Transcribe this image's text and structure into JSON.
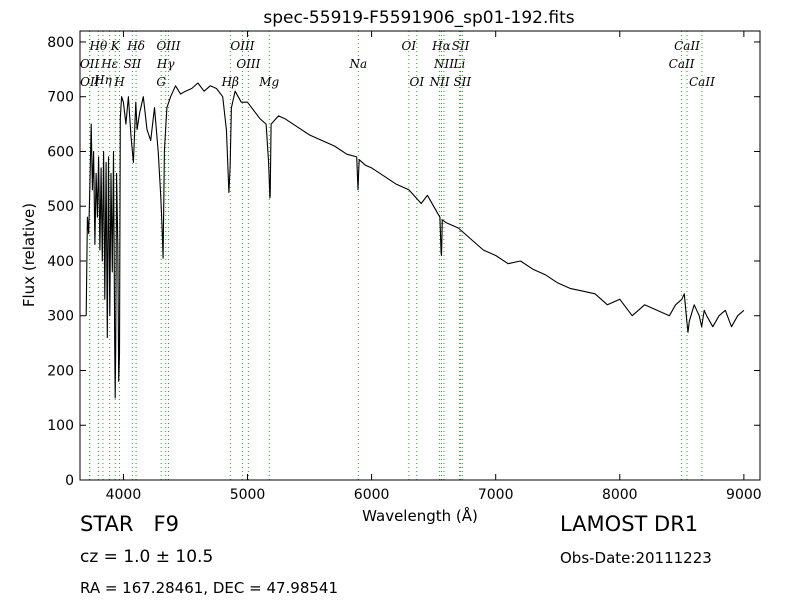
{
  "info": {
    "object_class": "STAR",
    "subclass": "F9",
    "cz_text": "cz = 1.0 ± 10.5",
    "radec_text": "RA = 167.28461, DEC = 47.98541",
    "survey": "LAMOST DR1",
    "obs_date": "Obs-Date:20111223"
  },
  "colors": {
    "line": "#000000",
    "marker": "#2ca02c",
    "background": "#ffffff"
  },
  "chart_data": {
    "type": "line",
    "title": "spec-55919-F5591906_sp01-192.fits",
    "xlabel": "Wavelength (Å)",
    "ylabel": "Flux (relative)",
    "xlim": [
      3650,
      9130
    ],
    "ylim": [
      0,
      820
    ],
    "xticks": [
      4000,
      5000,
      6000,
      7000,
      8000,
      9000
    ],
    "yticks": [
      0,
      100,
      200,
      300,
      400,
      500,
      600,
      700,
      800
    ],
    "grid": false,
    "series": [
      {
        "x": [
          3700,
          3710,
          3720,
          3730,
          3740,
          3750,
          3760,
          3770,
          3780,
          3790,
          3800,
          3810,
          3820,
          3830,
          3840,
          3850,
          3860,
          3870,
          3880,
          3890,
          3900,
          3910,
          3920,
          3930,
          3934,
          3938,
          3945,
          3955,
          3962,
          3968,
          3975,
          3985,
          4000,
          4020,
          4040,
          4060,
          4080,
          4100,
          4110,
          4130,
          4160,
          4190,
          4220,
          4250,
          4280,
          4300,
          4310,
          4320,
          4330,
          4340,
          4350,
          4380,
          4420,
          4460,
          4500,
          4550,
          4600,
          4650,
          4700,
          4750,
          4800,
          4830,
          4850,
          4860,
          4870,
          4900,
          4950,
          5000,
          5050,
          5100,
          5150,
          5170,
          5180,
          5183,
          5190,
          5250,
          5300,
          5400,
          5500,
          5600,
          5700,
          5800,
          5880,
          5890,
          5895,
          5900,
          5950,
          6000,
          6100,
          6200,
          6300,
          6400,
          6450,
          6500,
          6550,
          6560,
          6563,
          6570,
          6600,
          6700,
          6800,
          6900,
          7000,
          7100,
          7200,
          7300,
          7400,
          7500,
          7600,
          7700,
          7800,
          7900,
          8000,
          8100,
          8200,
          8300,
          8400,
          8450,
          8500,
          8520,
          8540,
          8550,
          8560,
          8600,
          8640,
          8660,
          8680,
          8700,
          8750,
          8800,
          8850,
          8900,
          8950,
          9000
        ],
        "values": [
          300,
          480,
          450,
          540,
          650,
          530,
          600,
          430,
          560,
          480,
          590,
          420,
          570,
          400,
          600,
          330,
          580,
          260,
          590,
          300,
          560,
          380,
          600,
          250,
          150,
          240,
          560,
          430,
          180,
          230,
          660,
          700,
          690,
          650,
          700,
          630,
          580,
          690,
          640,
          670,
          700,
          640,
          620,
          680,
          600,
          520,
          470,
          405,
          600,
          640,
          680,
          700,
          720,
          705,
          710,
          715,
          725,
          710,
          720,
          715,
          700,
          640,
          525,
          570,
          680,
          710,
          690,
          690,
          675,
          660,
          650,
          580,
          515,
          520,
          650,
          665,
          660,
          645,
          630,
          620,
          610,
          595,
          590,
          530,
          560,
          585,
          575,
          570,
          555,
          540,
          530,
          505,
          520,
          500,
          480,
          415,
          410,
          475,
          470,
          460,
          440,
          420,
          410,
          395,
          400,
          385,
          375,
          360,
          350,
          345,
          340,
          320,
          330,
          300,
          320,
          310,
          300,
          320,
          330,
          340,
          290,
          270,
          290,
          320,
          300,
          280,
          310,
          300,
          280,
          300,
          310,
          280,
          300,
          310
        ]
      }
    ],
    "line_markers": [
      {
        "label": "Hθ",
        "x": 3798,
        "row": 1
      },
      {
        "label": "K",
        "x": 3934,
        "row": 1
      },
      {
        "label": "Hδ",
        "x": 4102,
        "row": 1
      },
      {
        "label": "OIII",
        "x": 4363,
        "row": 1
      },
      {
        "label": "OIII",
        "x": 4959,
        "row": 1
      },
      {
        "label": "OI",
        "x": 6300,
        "row": 1
      },
      {
        "label": "Hα",
        "x": 6563,
        "row": 1
      },
      {
        "label": "SII",
        "x": 6717,
        "row": 1
      },
      {
        "label": "CaII",
        "x": 8542,
        "row": 1
      },
      {
        "label": "OII",
        "x": 3727,
        "row": 2
      },
      {
        "label": "Hε",
        "x": 3889,
        "row": 2
      },
      {
        "label": "SII",
        "x": 4072,
        "row": 2
      },
      {
        "label": "Hγ",
        "x": 4341,
        "row": 2
      },
      {
        "label": "OIII",
        "x": 5007,
        "row": 2
      },
      {
        "label": "Na",
        "x": 5893,
        "row": 2
      },
      {
        "label": "NII",
        "x": 6583,
        "row": 2
      },
      {
        "label": "Li",
        "x": 6708,
        "row": 2
      },
      {
        "label": "CaII",
        "x": 8498,
        "row": 2
      },
      {
        "label": "Hη",
        "x": 3835,
        "row": 3
      },
      {
        "label": "OII",
        "x": 3729,
        "row": 4
      },
      {
        "label": "H",
        "x": 3968,
        "row": 4
      },
      {
        "label": "G",
        "x": 4304,
        "row": 4
      },
      {
        "label": "Hβ",
        "x": 4861,
        "row": 4
      },
      {
        "label": "Mg",
        "x": 5175,
        "row": 4
      },
      {
        "label": "OI",
        "x": 6364,
        "row": 4
      },
      {
        "label": "NII",
        "x": 6548,
        "row": 4
      },
      {
        "label": "SII",
        "x": 6731,
        "row": 4
      },
      {
        "label": "CaII",
        "x": 8662,
        "row": 4
      }
    ]
  }
}
